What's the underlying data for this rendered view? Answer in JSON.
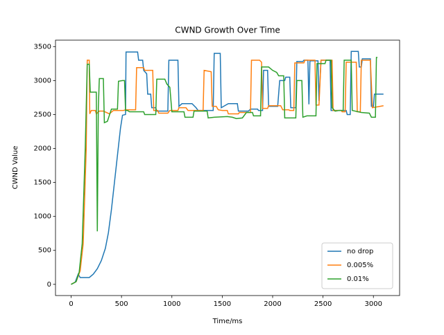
{
  "chart_data": {
    "type": "line",
    "title": "CWND Growth Over Time",
    "x_label": "Time/ms",
    "y_label": "CWND Value",
    "xlim": [
      -155,
      3260
    ],
    "ylim": [
      -165,
      3595
    ],
    "xticks": [
      0,
      500,
      1000,
      1500,
      2000,
      2500,
      3000
    ],
    "yticks": [
      0,
      500,
      1000,
      1500,
      2000,
      2500,
      3000,
      3500
    ],
    "legend": "lower right",
    "grid": false,
    "series": [
      {
        "name": "no drop",
        "color": "#1f77b4",
        "x": [
          0,
          40,
          70,
          90,
          180,
          220,
          260,
          300,
          340,
          370,
          400,
          430,
          460,
          490,
          510,
          540,
          545,
          660,
          670,
          710,
          720,
          750,
          760,
          790,
          800,
          840,
          850,
          960,
          970,
          1060,
          1070,
          1100,
          1200,
          1240,
          1260,
          1410,
          1420,
          1480,
          1490,
          1560,
          1650,
          1660,
          1760,
          1780,
          1850,
          1860,
          1900,
          1910,
          1950,
          1960,
          2050,
          2070,
          2120,
          2130,
          2170,
          2180,
          2230,
          2240,
          2300,
          2310,
          2350,
          2360,
          2370,
          2450,
          2460,
          2480,
          2570,
          2580,
          2730,
          2740,
          2770,
          2780,
          2850,
          2860,
          2880,
          2890,
          2970,
          2980,
          3000,
          3010,
          3100
        ],
        "values": [
          0,
          30,
          150,
          100,
          100,
          150,
          230,
          350,
          530,
          760,
          1100,
          1500,
          1900,
          2300,
          2490,
          2500,
          3420,
          3420,
          3300,
          3300,
          3150,
          3100,
          2800,
          2800,
          2600,
          2600,
          2550,
          2550,
          3300,
          3300,
          2620,
          2660,
          2660,
          2600,
          2560,
          2560,
          3400,
          3400,
          2600,
          2660,
          2660,
          2550,
          2550,
          2580,
          2580,
          2560,
          2560,
          3150,
          3150,
          2620,
          2620,
          3000,
          3000,
          3050,
          3050,
          2600,
          2600,
          3280,
          3280,
          3300,
          3300,
          2650,
          3290,
          3290,
          2700,
          3300,
          3300,
          2560,
          2560,
          2500,
          2500,
          3430,
          3430,
          3200,
          3200,
          3320,
          3320,
          2620,
          2620,
          2800,
          2800
        ]
      },
      {
        "name": "0.005%",
        "color": "#ff7f0e",
        "x": [
          0,
          50,
          90,
          120,
          150,
          160,
          180,
          185,
          200,
          240,
          250,
          280,
          320,
          380,
          420,
          520,
          540,
          640,
          650,
          720,
          730,
          810,
          820,
          860,
          870,
          960,
          980,
          1060,
          1070,
          1140,
          1160,
          1310,
          1320,
          1390,
          1400,
          1440,
          1460,
          1500,
          1550,
          1560,
          1660,
          1670,
          1780,
          1790,
          1870,
          1890,
          1900,
          1950,
          1960,
          2080,
          2100,
          2160,
          2170,
          2210,
          2220,
          2310,
          2320,
          2420,
          2430,
          2460,
          2480,
          2590,
          2600,
          2680,
          2690,
          2720,
          2730,
          2830,
          2840,
          2870,
          2880,
          2970,
          2990,
          3100
        ],
        "values": [
          0,
          40,
          200,
          600,
          2000,
          3300,
          3300,
          2510,
          2560,
          2560,
          2510,
          2550,
          2550,
          2510,
          2560,
          2560,
          2570,
          2570,
          3190,
          3190,
          3150,
          3150,
          2560,
          2560,
          2520,
          2520,
          2560,
          2560,
          2600,
          2600,
          2560,
          2560,
          3150,
          3130,
          2620,
          2620,
          2570,
          2560,
          2560,
          2510,
          2510,
          2530,
          2530,
          3300,
          3300,
          3270,
          2590,
          2590,
          2630,
          2630,
          2570,
          2570,
          2560,
          2560,
          3260,
          3260,
          3300,
          3300,
          2640,
          2640,
          3300,
          3300,
          2560,
          2560,
          2540,
          2540,
          3270,
          3270,
          2540,
          2540,
          3300,
          3300,
          2600,
          2630
        ]
      },
      {
        "name": "0.01%",
        "color": "#2ca02c",
        "x": [
          0,
          50,
          80,
          110,
          140,
          160,
          180,
          190,
          250,
          260,
          270,
          280,
          320,
          330,
          360,
          400,
          460,
          470,
          510,
          530,
          540,
          560,
          580,
          720,
          730,
          840,
          850,
          930,
          950,
          980,
          1000,
          1120,
          1130,
          1210,
          1220,
          1350,
          1360,
          1420,
          1550,
          1600,
          1640,
          1700,
          1740,
          1800,
          1810,
          1880,
          1890,
          1960,
          2000,
          2040,
          2060,
          2110,
          2120,
          2230,
          2240,
          2290,
          2300,
          2340,
          2430,
          2440,
          2520,
          2530,
          2580,
          2590,
          2620,
          2660,
          2700,
          2710,
          2780,
          2790,
          2880,
          2960,
          2980,
          3020,
          3030,
          3040
        ],
        "values": [
          0,
          40,
          180,
          600,
          2000,
          3240,
          3240,
          2830,
          2830,
          780,
          2600,
          3030,
          3030,
          2380,
          2400,
          2580,
          2580,
          2990,
          3000,
          3000,
          2560,
          2560,
          2540,
          2540,
          2500,
          2500,
          3020,
          3020,
          2950,
          2900,
          2540,
          2540,
          2460,
          2460,
          2550,
          2550,
          2450,
          2460,
          2470,
          2460,
          2440,
          2450,
          2530,
          2530,
          2480,
          2480,
          3200,
          3200,
          3150,
          3120,
          3070,
          3070,
          2450,
          2450,
          3000,
          3000,
          2460,
          2480,
          2480,
          3250,
          3250,
          3300,
          3300,
          2600,
          2550,
          2560,
          2560,
          3300,
          3300,
          2560,
          2530,
          2520,
          2460,
          2460,
          3340,
          3340
        ]
      }
    ]
  }
}
